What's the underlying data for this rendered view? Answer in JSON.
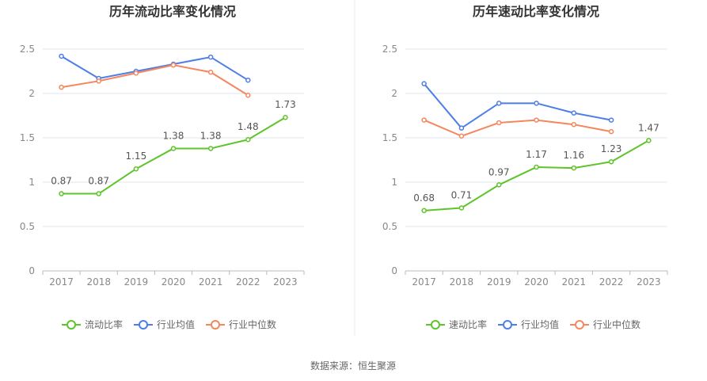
{
  "source": "数据来源：恒生聚源",
  "colors": {
    "company": "#5ec429",
    "industry_avg": "#4d7ee8",
    "industry_median": "#f5865e",
    "grid": "#e3e6f0",
    "axis": "#bbbbbb",
    "divider": "#ececec"
  },
  "chart_data": [
    {
      "type": "line",
      "title": "历年流动比率变化情况",
      "x": [
        "2017",
        "2018",
        "2019",
        "2020",
        "2021",
        "2022",
        "2023"
      ],
      "y_ticks": [
        "0",
        "0.5",
        "1",
        "1.5",
        "2",
        "2.5"
      ],
      "ylim": [
        0,
        2.5
      ],
      "grid": true,
      "legend_position": "bottom",
      "series": [
        {
          "name": "流动比率",
          "key": "company",
          "values": [
            0.87,
            0.87,
            1.15,
            1.38,
            1.38,
            1.48,
            1.73
          ],
          "labels": [
            "0.87",
            "0.87",
            "1.15",
            "1.38",
            "1.38",
            "1.48",
            "1.73"
          ]
        },
        {
          "name": "行业均值",
          "key": "industry_avg",
          "values": [
            2.42,
            2.17,
            2.25,
            2.33,
            2.41,
            2.15,
            null
          ]
        },
        {
          "name": "行业中位数",
          "key": "industry_median",
          "values": [
            2.07,
            2.14,
            2.23,
            2.32,
            2.24,
            1.98,
            null
          ]
        }
      ]
    },
    {
      "type": "line",
      "title": "历年速动比率变化情况",
      "x": [
        "2017",
        "2018",
        "2019",
        "2020",
        "2021",
        "2022",
        "2023"
      ],
      "y_ticks": [
        "0",
        "0.5",
        "1",
        "1.5",
        "2",
        "2.5"
      ],
      "ylim": [
        0,
        2.5
      ],
      "grid": true,
      "legend_position": "bottom",
      "series": [
        {
          "name": "速动比率",
          "key": "company",
          "values": [
            0.68,
            0.71,
            0.97,
            1.17,
            1.16,
            1.23,
            1.47
          ],
          "labels": [
            "0.68",
            "0.71",
            "0.97",
            "1.17",
            "1.16",
            "1.23",
            "1.47"
          ]
        },
        {
          "name": "行业均值",
          "key": "industry_avg",
          "values": [
            2.11,
            1.61,
            1.89,
            1.89,
            1.78,
            1.7,
            null
          ]
        },
        {
          "name": "行业中位数",
          "key": "industry_median",
          "values": [
            1.7,
            1.52,
            1.67,
            1.7,
            1.65,
            1.57,
            null
          ]
        }
      ]
    }
  ]
}
